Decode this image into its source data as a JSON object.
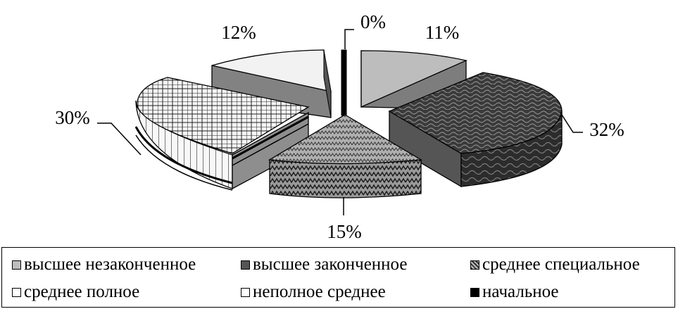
{
  "chart_data": {
    "type": "pie",
    "title": "",
    "slices": [
      {
        "label": "высшее незаконченное",
        "value": 11,
        "display": "11%",
        "color": "#bdbdbd",
        "pattern": "solid-light"
      },
      {
        "label": "высшее законченное",
        "value": 32,
        "display": "32%",
        "color": "#3c3c3c",
        "pattern": "dark-wave"
      },
      {
        "label": "среднее специальное",
        "value": 15,
        "display": "15%",
        "color": "#8a8a8a",
        "pattern": "zigzag"
      },
      {
        "label": "среднее полное",
        "value": 30,
        "display": "30%",
        "color": "#f2f2f2",
        "pattern": "grid"
      },
      {
        "label": "неполное среднее",
        "value": 12,
        "display": "12%",
        "color": "#f4f4f4",
        "pattern": "solid-white"
      },
      {
        "label": "начальное",
        "value": 0,
        "display": "0%",
        "color": "#000000",
        "pattern": "solid-black"
      }
    ],
    "legend_position": "bottom",
    "style": "3d-exploded"
  }
}
